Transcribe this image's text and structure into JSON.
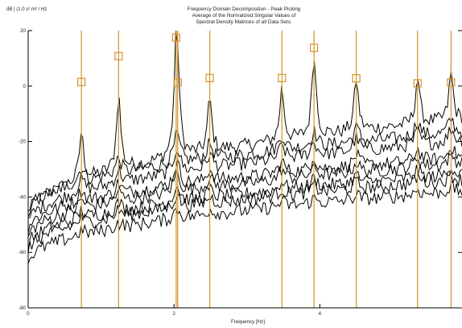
{
  "chart_data": {
    "type": "line",
    "title": [
      "Frequency Domain Decomposition - Peak Picking",
      "Average of the Normalized Singular Values of",
      "Spectral Density Matrices of all Data Sets."
    ],
    "ylabel": "dB | (1.0 s² m² / Hz",
    "xlabel": "Frequency [Hz]",
    "xlim": [
      0,
      5.95
    ],
    "ylim": [
      -80,
      20
    ],
    "x_ticks": [
      0,
      2,
      4
    ],
    "y_ticks": [
      20,
      0,
      -20,
      -40,
      -60,
      -80
    ],
    "grid": false,
    "colors": {
      "curve": "#000000",
      "peak_line": "#d4932b",
      "axis": "#000000"
    },
    "peaks_hz": [
      0.73,
      1.24,
      2.03,
      2.05,
      2.49,
      3.48,
      3.92,
      4.5,
      5.34,
      5.8
    ],
    "peak_db": [
      1.5,
      10.8,
      17.5,
      1.3,
      2.9,
      2.9,
      13.8,
      2.8,
      1.0,
      1.3
    ],
    "curve_count": 8,
    "curve_x_step_hz": 0.025,
    "series_baselines": [
      {
        "name": "",
        "start_db": -48,
        "end_db": -12
      },
      {
        "name": "",
        "start_db": -46,
        "end_db": -17
      },
      {
        "name": "",
        "start_db": -50,
        "end_db": -20
      },
      {
        "name": "",
        "start_db": -52,
        "end_db": -26
      },
      {
        "name": "",
        "start_db": -55,
        "end_db": -28
      },
      {
        "name": "",
        "start_db": -58,
        "end_db": -32
      },
      {
        "name": "",
        "start_db": -60,
        "end_db": -34
      },
      {
        "name": "",
        "start_db": -64,
        "end_db": -38
      }
    ]
  }
}
